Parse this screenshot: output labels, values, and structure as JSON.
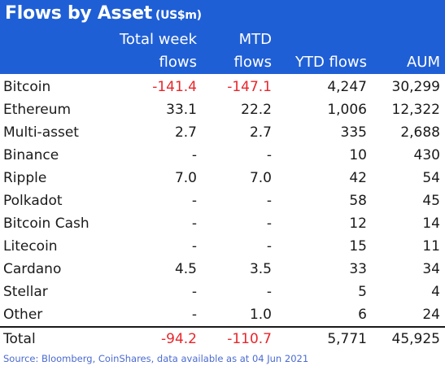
{
  "title": {
    "text": "Flows by Asset",
    "unit": "(US$m)"
  },
  "headers": {
    "col1_line1": "Total week",
    "col1_line2": "flows",
    "col2_line1": "MTD",
    "col2_line2": "flows",
    "col3": "YTD flows",
    "col4": "AUM"
  },
  "rows": [
    {
      "asset": "Bitcoin",
      "week": "-141.4",
      "mtd": "-147.1",
      "ytd": "4,247",
      "aum": "30,299"
    },
    {
      "asset": "Ethereum",
      "week": "33.1",
      "mtd": "22.2",
      "ytd": "1,006",
      "aum": "12,322"
    },
    {
      "asset": "Multi-asset",
      "week": "2.7",
      "mtd": "2.7",
      "ytd": "335",
      "aum": "2,688"
    },
    {
      "asset": "Binance",
      "week": "-",
      "mtd": "-",
      "ytd": "10",
      "aum": "430"
    },
    {
      "asset": "Ripple",
      "week": "7.0",
      "mtd": "7.0",
      "ytd": "42",
      "aum": "54"
    },
    {
      "asset": "Polkadot",
      "week": "-",
      "mtd": "-",
      "ytd": "58",
      "aum": "45"
    },
    {
      "asset": "Bitcoin Cash",
      "week": "-",
      "mtd": "-",
      "ytd": "12",
      "aum": "14"
    },
    {
      "asset": "Litecoin",
      "week": "-",
      "mtd": "-",
      "ytd": "15",
      "aum": "11"
    },
    {
      "asset": "Cardano",
      "week": "4.5",
      "mtd": "3.5",
      "ytd": "33",
      "aum": "34"
    },
    {
      "asset": "Stellar",
      "week": "-",
      "mtd": "-",
      "ytd": "5",
      "aum": "4"
    },
    {
      "asset": "Other",
      "week": "-",
      "mtd": "1.0",
      "ytd": "6",
      "aum": "24"
    }
  ],
  "total": {
    "asset": "Total",
    "week": "-94.2",
    "mtd": "-110.7",
    "ytd": "5,771",
    "aum": "45,925"
  },
  "source": "Source: Bloomberg, CoinShares, data available as at 04 Jun 2021",
  "colors": {
    "header_bg": "#1f5fd6",
    "negative": "#e8262b",
    "source_text": "#4a6ad0"
  }
}
